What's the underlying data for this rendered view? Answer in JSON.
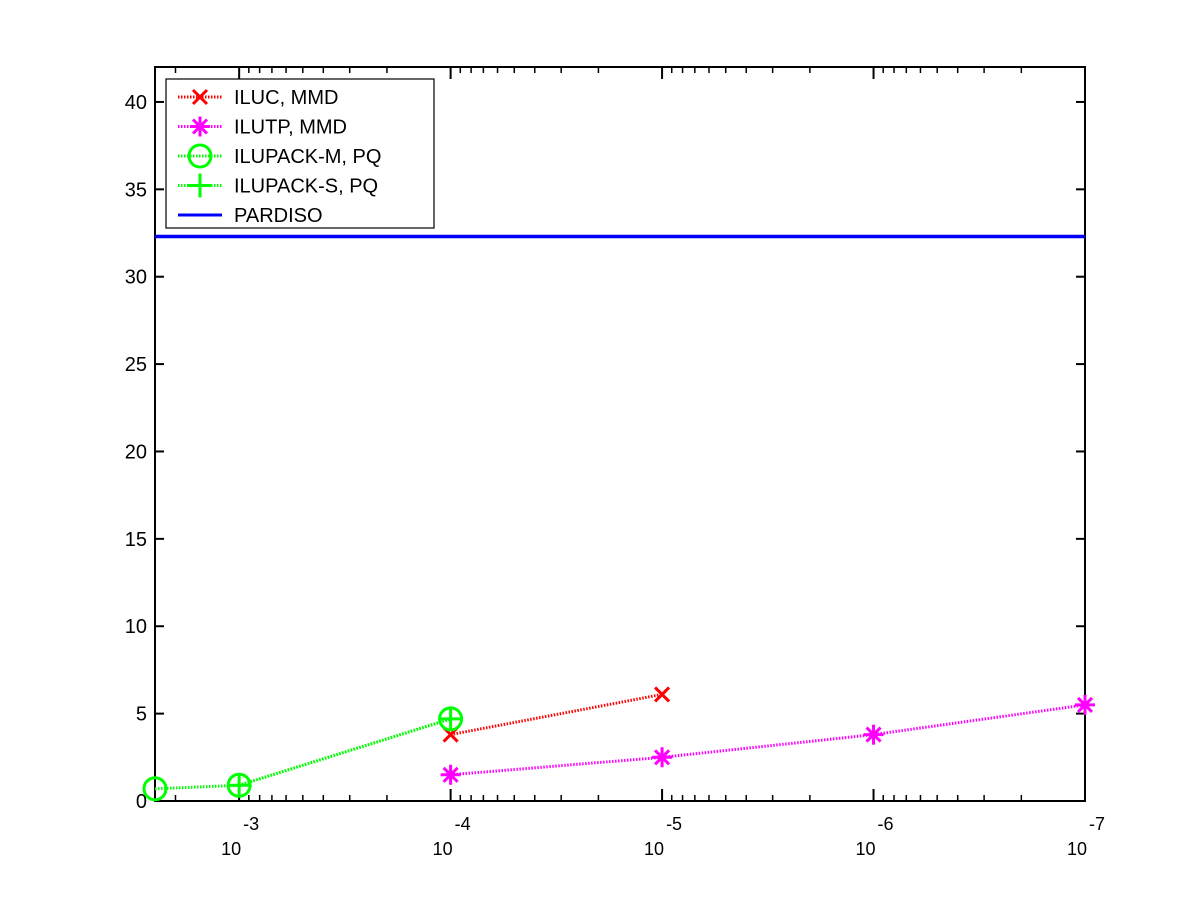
{
  "chart_data": {
    "type": "line",
    "x_scale": "log-reversed",
    "xlim": [
      0.0025,
      1e-07
    ],
    "ylim": [
      0,
      42
    ],
    "x_ticks": [
      {
        "base": "10",
        "exponent": "-3",
        "value": 0.001
      },
      {
        "base": "10",
        "exponent": "-4",
        "value": 0.0001
      },
      {
        "base": "10",
        "exponent": "-5",
        "value": 1e-05
      },
      {
        "base": "10",
        "exponent": "-6",
        "value": 1e-06
      },
      {
        "base": "10",
        "exponent": "-7",
        "value": 1e-07
      }
    ],
    "y_ticks": [
      "0",
      "5",
      "10",
      "15",
      "20",
      "25",
      "30",
      "35",
      "40"
    ],
    "grid": false,
    "legend_position": "top-left",
    "series": [
      {
        "name": "ILUC, MMD",
        "color": "#ff0000",
        "marker": "x",
        "line": "dotted",
        "x": [
          0.0001,
          1e-05
        ],
        "y": [
          3.8,
          6.1
        ]
      },
      {
        "name": "ILUTP, MMD",
        "color": "#ff00ff",
        "marker": "asterisk",
        "line": "dotted",
        "x": [
          0.0001,
          1e-05,
          1e-06,
          1e-07
        ],
        "y": [
          1.5,
          2.5,
          3.8,
          5.5
        ]
      },
      {
        "name": "ILUPACK-M, PQ",
        "color": "#00ff00",
        "marker": "circle",
        "line": "dotted",
        "x": [
          0.0025,
          0.001,
          0.0001
        ],
        "y": [
          0.7,
          0.9,
          4.7
        ]
      },
      {
        "name": "ILUPACK-S, PQ",
        "color": "#00ff00",
        "marker": "plus",
        "line": "dotted",
        "x": [
          0.001,
          0.0001
        ],
        "y": [
          0.9,
          4.7
        ]
      },
      {
        "name": "PARDISO",
        "color": "#0000ff",
        "marker": "none",
        "line": "solid",
        "x": [
          0.0025,
          1e-07
        ],
        "y": [
          32.3,
          32.3
        ]
      }
    ]
  }
}
